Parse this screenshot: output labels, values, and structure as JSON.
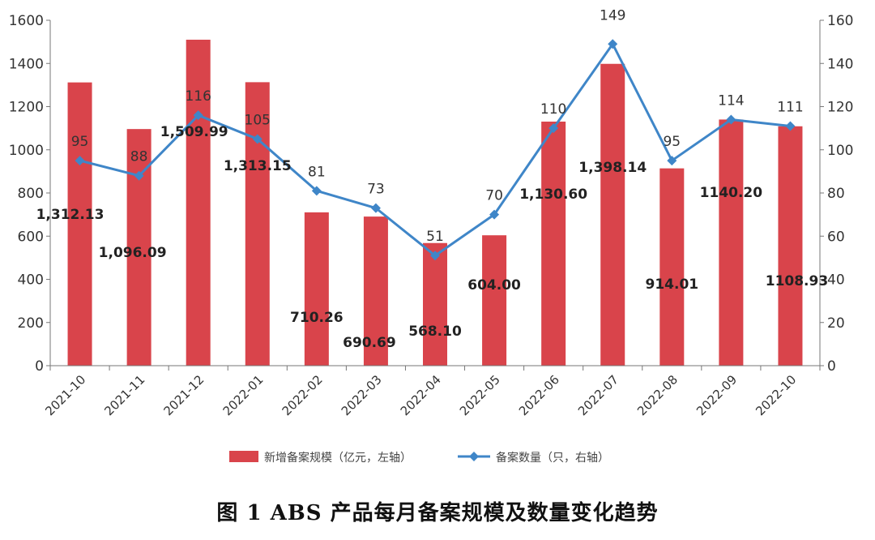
{
  "chart_data": {
    "type": "bar",
    "categories": [
      "2021-10",
      "2021-11",
      "2021-12",
      "2022-01",
      "2022-02",
      "2022-03",
      "2022-04",
      "2022-05",
      "2022-06",
      "2022-07",
      "2022-08",
      "2022-09",
      "2022-10"
    ],
    "series": [
      {
        "name": "新增备案规模（亿元，左轴）",
        "type": "bar",
        "axis": "left",
        "color": "#d9444b",
        "values": [
          1312.13,
          1096.09,
          1509.99,
          1313.15,
          710.26,
          690.69,
          568.1,
          604.0,
          1130.6,
          1398.14,
          914.01,
          1140.2,
          1108.93
        ],
        "labels": [
          "1,312.13",
          "1,096.09",
          "1,509.99",
          "1,313.15",
          "710.26",
          "690.69",
          "568.10",
          "604.00",
          "1,130.60",
          "1,398.14",
          "914.01",
          "1140.20",
          "1108.93"
        ]
      },
      {
        "name": "备案数量（只，右轴）",
        "type": "line",
        "axis": "right",
        "color": "#3f86c8",
        "values": [
          95,
          88,
          116,
          105,
          81,
          73,
          51,
          70,
          110,
          149,
          95,
          114,
          111
        ],
        "labels": [
          "95",
          "88",
          "116",
          "105",
          "81",
          "73",
          "51",
          "70",
          "110",
          "149",
          "95",
          "114",
          "111"
        ]
      }
    ],
    "ylim_left": [
      0,
      1600
    ],
    "ylim_right": [
      0,
      160
    ],
    "yticks_left": [
      "0",
      "200",
      "400",
      "600",
      "800",
      "1000",
      "1200",
      "1400",
      "1600"
    ],
    "yticks_right": [
      "0",
      "20",
      "40",
      "60",
      "80",
      "100",
      "120",
      "140",
      "160"
    ],
    "grid": false,
    "legend_position": "bottom"
  },
  "caption": "图 1   ABS 产品每月备案规模及数量变化趋势"
}
